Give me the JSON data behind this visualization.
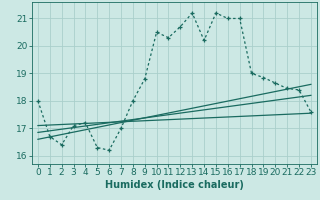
{
  "xlabel": "Humidex (Indice chaleur)",
  "ylabel": "",
  "background_color": "#cce8e4",
  "grid_color": "#aacfcb",
  "line_color": "#1a6b60",
  "xlim": [
    -0.5,
    23.5
  ],
  "ylim": [
    15.7,
    21.6
  ],
  "yticks": [
    16,
    17,
    18,
    19,
    20,
    21
  ],
  "xticks": [
    0,
    1,
    2,
    3,
    4,
    5,
    6,
    7,
    8,
    9,
    10,
    11,
    12,
    13,
    14,
    15,
    16,
    17,
    18,
    19,
    20,
    21,
    22,
    23
  ],
  "series1_x": [
    0,
    1,
    2,
    3,
    4,
    5,
    6,
    7,
    8,
    9,
    10,
    11,
    12,
    13,
    14,
    15,
    16,
    17,
    18,
    19,
    20,
    21,
    22,
    23
  ],
  "series1_y": [
    18.0,
    16.7,
    16.4,
    17.1,
    17.2,
    16.3,
    16.2,
    17.0,
    18.0,
    18.8,
    20.5,
    20.3,
    20.7,
    21.2,
    20.2,
    21.2,
    21.0,
    21.0,
    19.0,
    18.85,
    18.65,
    18.45,
    18.4,
    17.6
  ],
  "series2_x": [
    0,
    23
  ],
  "series2_y": [
    17.1,
    17.55
  ],
  "series3_x": [
    0,
    23
  ],
  "series3_y": [
    16.85,
    18.2
  ],
  "series4_x": [
    0,
    23
  ],
  "series4_y": [
    16.6,
    18.6
  ],
  "fontsize_label": 7,
  "fontsize_tick": 6.5
}
